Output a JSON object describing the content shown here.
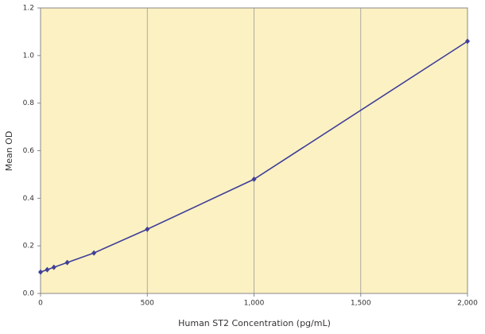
{
  "chart_data": {
    "type": "line",
    "x_label": "Human ST2 Concentration (pg/mL)",
    "y_label": "Mean OD",
    "x": [
      0,
      31.25,
      62.5,
      125,
      250,
      500,
      1000,
      2000
    ],
    "series": [
      {
        "name": "Mean OD",
        "color": "#3f3f99",
        "values": [
          0.09,
          0.1,
          0.11,
          0.13,
          0.17,
          0.27,
          0.48,
          1.06
        ]
      }
    ],
    "xlim": [
      0,
      2000
    ],
    "xticks": [
      0,
      500,
      {
        "value": 1000,
        "label": "1,000"
      },
      {
        "value": 1500,
        "label": "1,500"
      },
      {
        "value": 2000,
        "label": "2,000"
      }
    ],
    "ylim": [
      0,
      1.2
    ],
    "yticks": [
      {
        "value": 0,
        "label": "0.0"
      },
      0.2,
      0.4,
      0.6,
      0.8,
      {
        "value": 1,
        "label": "1.0"
      },
      1.2
    ],
    "grid": "x",
    "background": "#fcf1c2"
  }
}
